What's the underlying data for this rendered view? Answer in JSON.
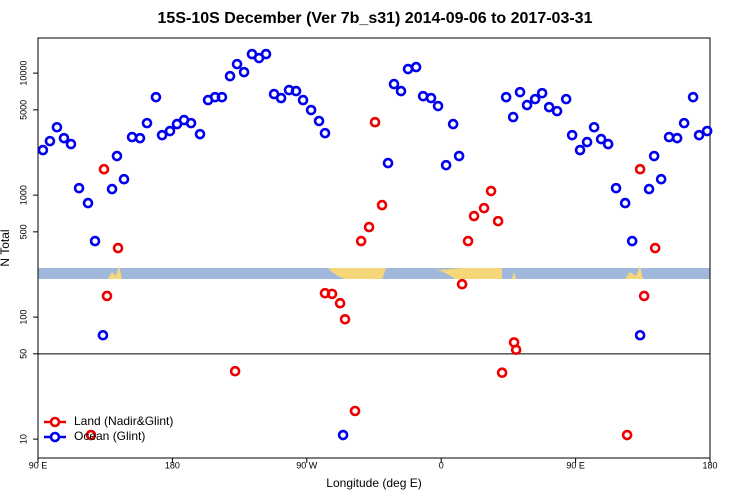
{
  "chart_data": {
    "type": "scatter",
    "title": "15S-10S December (Ver 7b_s31)   2014-09-06 to 2017-03-31",
    "x_label": "Longitude (deg E)",
    "y_label": "N Total",
    "xlim": [
      90,
      540
    ],
    "xticks": [
      {
        "value": 90,
        "label": "90 E"
      },
      180,
      {
        "value": 270,
        "label": "90 W"
      },
      {
        "value": 360,
        "label": "0"
      },
      {
        "value": 450,
        "label": "90 E"
      },
      {
        "value": 540,
        "label": "180"
      }
    ],
    "ylim": [
      7,
      19400
    ],
    "log_y": true,
    "yticks": [
      10,
      50,
      100,
      500,
      1000,
      5000,
      10000
    ],
    "reference_line": 50,
    "legend": "bottom-left",
    "series": [
      {
        "name": "Land (Nadir&Glint)",
        "color": "#ee0000",
        "x": [
          134.2,
          136.2,
          143.6,
          125.5,
          222,
          282.2,
          286.9,
          292.3,
          295.6,
          302.3,
          306.4,
          311.7,
          315.7,
          320.4,
          374,
          378,
          382,
          388.7,
          393.4,
          398.1,
          400.8,
          408.8,
          410.2,
          484.5,
          493.2,
          495.9,
          503.3
        ],
        "values": [
          1630,
          149,
          368,
          10.8,
          36,
          157,
          155,
          130,
          96,
          17,
          420,
          547,
          3960,
          828,
          186,
          420,
          673,
          782,
          1080,
          612,
          35,
          62,
          54,
          10.8,
          1630,
          149,
          368
        ]
      },
      {
        "name": "Ocean (Glint)",
        "color": "#0000ee",
        "x": [
          93.3,
          98,
          102.7,
          107.4,
          112.1,
          117.5,
          123.5,
          128.2,
          133.5,
          139.6,
          142.9,
          147.6,
          153,
          158.3,
          163,
          169,
          173.1,
          178.4,
          183.1,
          187.8,
          192.5,
          198.5,
          203.9,
          208.6,
          213.2,
          218.6,
          223.3,
          228,
          233.3,
          238,
          242.7,
          248.1,
          252.8,
          258.1,
          262.8,
          267.5,
          272.9,
          278.2,
          282.2,
          294.3,
          324.4,
          328.4,
          333.1,
          337.8,
          343.2,
          347.9,
          353.2,
          357.9,
          363.3,
          368,
          372,
          403.5,
          408.2,
          412.8,
          417.5,
          422.9,
          427.6,
          432.3,
          437.6,
          443.7,
          447.7,
          453,
          457.7,
          462.4,
          467.1,
          471.8,
          477.1,
          483.2,
          487.9,
          493.2,
          499.2,
          502.6,
          507.3,
          512.6,
          518,
          522.7,
          528.7,
          532.7,
          538.1
        ],
        "values": [
          2340,
          2770,
          3600,
          2930,
          2620,
          1140,
          860,
          420,
          71,
          1120,
          2090,
          1350,
          2990,
          2930,
          3890,
          6350,
          3100,
          3350,
          3820,
          4120,
          3890,
          3160,
          6010,
          6350,
          6350,
          9440,
          11850,
          10190,
          14320,
          13290,
          14320,
          6730,
          6240,
          7260,
          7120,
          6010,
          4980,
          4050,
          3220,
          10.8,
          1830,
          8130,
          7120,
          10800,
          11200,
          6470,
          6240,
          5370,
          1760,
          3820,
          2090,
          6350,
          4360,
          6980,
          5470,
          6120,
          6850,
          5260,
          4880,
          6120,
          3100,
          2340,
          2720,
          3600,
          2880,
          2620,
          1140,
          860,
          420,
          71,
          1120,
          2090,
          1350,
          2990,
          2930,
          3890,
          6350,
          3100,
          3350
        ]
      }
    ]
  }
}
